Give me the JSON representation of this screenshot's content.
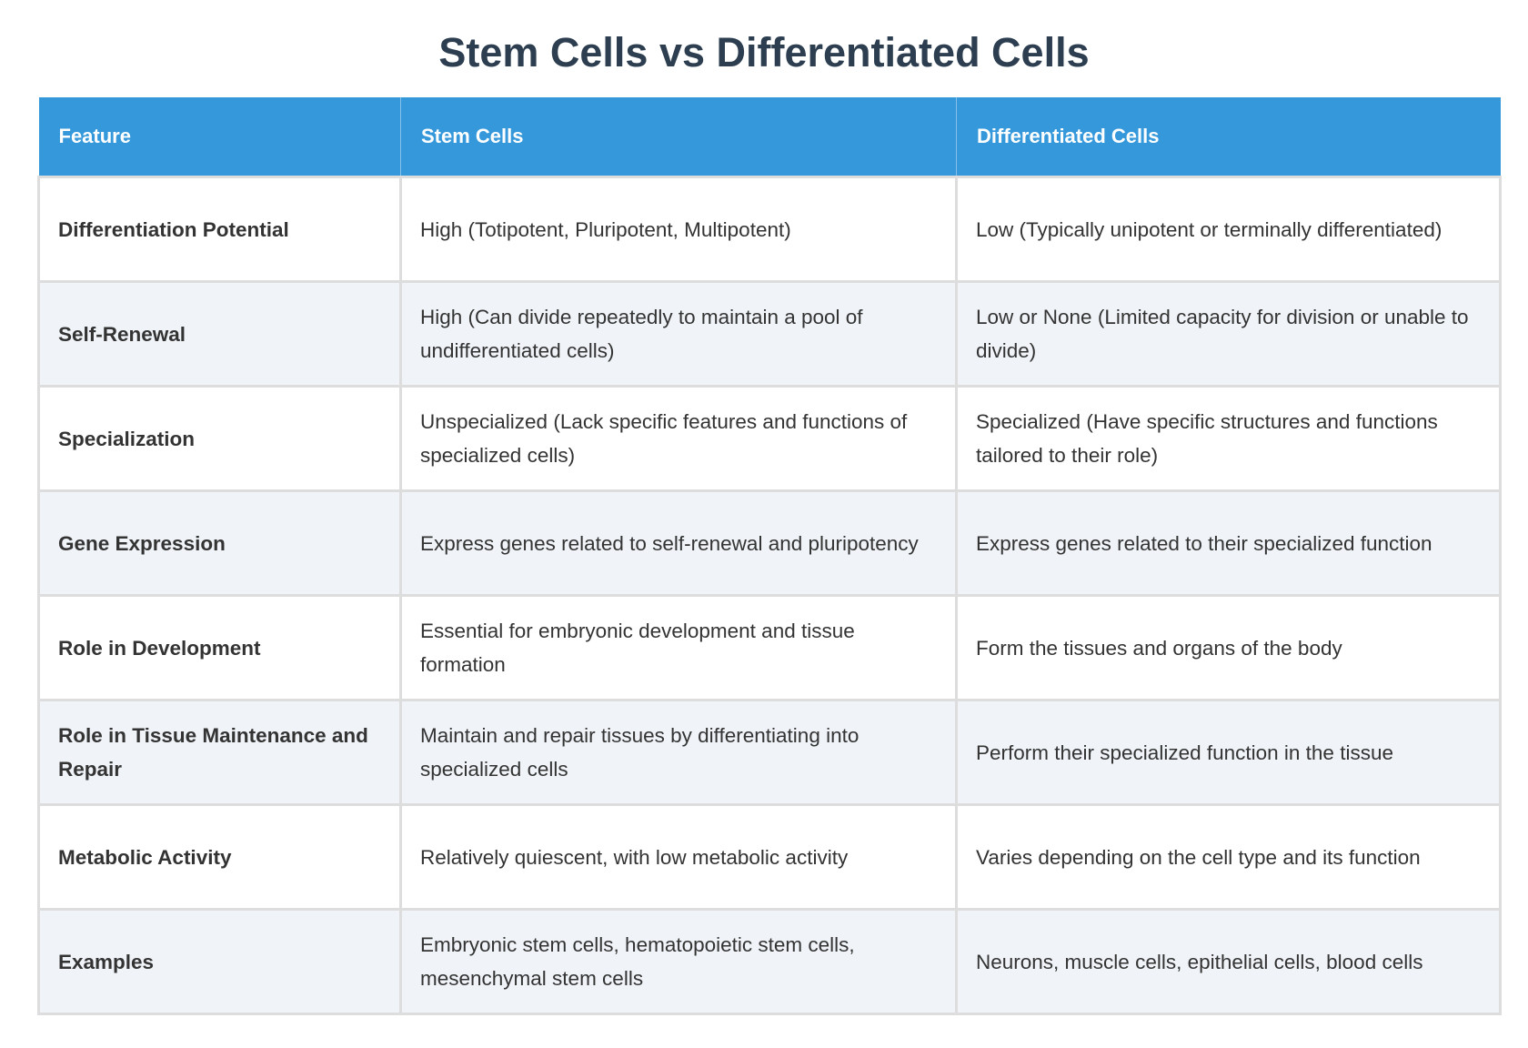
{
  "title": "Stem Cells vs Differentiated Cells",
  "table": {
    "headers": [
      "Feature",
      "Stem Cells",
      "Differentiated Cells"
    ],
    "rows": [
      [
        "Differentiation Potential",
        "High (Totipotent, Pluripotent, Multipotent)",
        "Low (Typically unipotent or terminally differentiated)"
      ],
      [
        "Self-Renewal",
        "High (Can divide repeatedly to maintain a pool of undifferentiated cells)",
        "Low or None (Limited capacity for division or unable to divide)"
      ],
      [
        "Specialization",
        "Unspecialized (Lack specific features and functions of specialized cells)",
        "Specialized (Have specific structures and functions tailored to their role)"
      ],
      [
        "Gene Expression",
        "Express genes related to self-renewal and pluripotency",
        "Express genes related to their specialized function"
      ],
      [
        "Role in Development",
        "Essential for embryonic development and tissue formation",
        "Form the tissues and organs of the body"
      ],
      [
        "Role in Tissue Maintenance and Repair",
        "Maintain and repair tissues by differentiating into specialized cells",
        "Perform their specialized function in the tissue"
      ],
      [
        "Metabolic Activity",
        "Relatively quiescent, with low metabolic activity",
        "Varies depending on the cell type and its function"
      ],
      [
        "Examples",
        "Embryonic stem cells, hematopoietic stem cells, mesenchymal stem cells",
        "Neurons, muscle cells, epithelial cells, blood cells"
      ]
    ]
  },
  "colors": {
    "header_bg": "#3498db",
    "title": "#2c3e50",
    "alt_row": "#f0f4f8"
  }
}
